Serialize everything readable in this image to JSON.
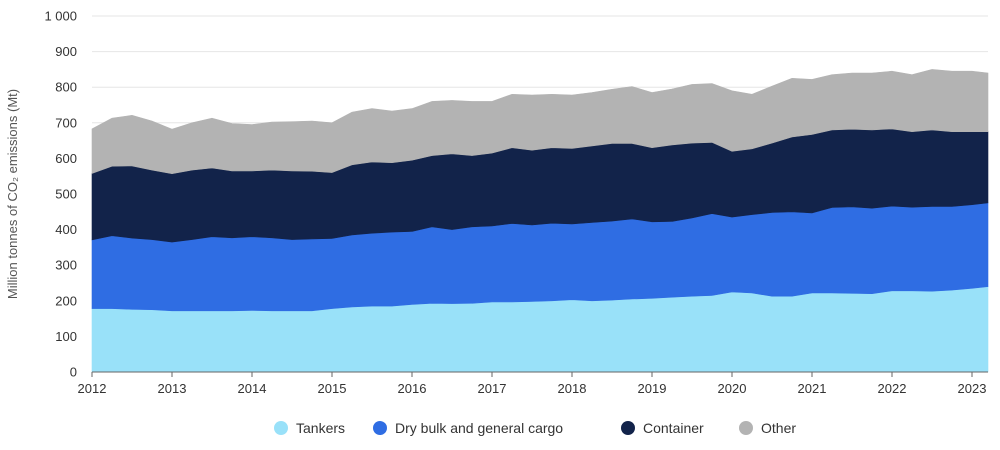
{
  "chart_data": {
    "type": "area",
    "stacked": true,
    "ylabel": "Million tonnes of CO₂ emissions (Mt)",
    "xlabel": "",
    "ylim": [
      0,
      1000
    ],
    "yticks": [
      0,
      100,
      200,
      300,
      400,
      500,
      600,
      700,
      800,
      900,
      1000
    ],
    "ytick_labels": [
      "0",
      "100",
      "200",
      "300",
      "400",
      "500",
      "600",
      "700",
      "800",
      "900",
      "1 000"
    ],
    "xlim": [
      2012,
      2023.2
    ],
    "xticks": [
      "2012",
      "2013",
      "2014",
      "2015",
      "2016",
      "2017",
      "2018",
      "2019",
      "2020",
      "2021",
      "2022",
      "2023"
    ],
    "grid": "horizontal",
    "legend_position": "bottom",
    "x": [
      2012,
      2012.25,
      2012.5,
      2012.75,
      2013,
      2013.25,
      2013.5,
      2013.75,
      2014,
      2014.25,
      2014.5,
      2014.75,
      2015,
      2015.25,
      2015.5,
      2015.75,
      2016,
      2016.25,
      2016.5,
      2016.75,
      2017,
      2017.25,
      2017.5,
      2017.75,
      2018,
      2018.25,
      2018.5,
      2018.75,
      2019,
      2019.25,
      2019.5,
      2019.75,
      2020,
      2020.25,
      2020.5,
      2020.75,
      2021,
      2021.25,
      2021.5,
      2021.75,
      2022,
      2022.25,
      2022.5,
      2022.75,
      2023,
      2023.2
    ],
    "series": [
      {
        "name": "Tankers",
        "color": "#99e1f9",
        "values": [
          178,
          178,
          176,
          175,
          172,
          172,
          172,
          172,
          173,
          172,
          172,
          172,
          178,
          183,
          185,
          185,
          190,
          193,
          192,
          193,
          197,
          197,
          198,
          200,
          203,
          200,
          202,
          205,
          207,
          210,
          213,
          215,
          225,
          222,
          213,
          213,
          222,
          222,
          221,
          220,
          228,
          228,
          227,
          230,
          235,
          240
        ]
      },
      {
        "name": "Dry bulk and general cargo",
        "color": "#2f6de3",
        "values": [
          193,
          205,
          200,
          197,
          193,
          200,
          208,
          205,
          207,
          205,
          200,
          202,
          197,
          202,
          205,
          208,
          205,
          215,
          208,
          215,
          213,
          220,
          215,
          218,
          213,
          220,
          222,
          225,
          215,
          213,
          220,
          230,
          210,
          220,
          235,
          237,
          225,
          240,
          243,
          240,
          238,
          235,
          238,
          235,
          235,
          235
        ]
      },
      {
        "name": "Container",
        "color": "#12234a",
        "values": [
          187,
          195,
          203,
          195,
          192,
          195,
          193,
          188,
          185,
          190,
          193,
          190,
          185,
          197,
          200,
          195,
          200,
          200,
          213,
          200,
          205,
          213,
          210,
          212,
          212,
          215,
          218,
          212,
          208,
          215,
          210,
          200,
          185,
          185,
          195,
          210,
          220,
          218,
          218,
          220,
          217,
          212,
          215,
          210,
          205,
          200
        ]
      },
      {
        "name": "Other",
        "color": "#b3b3b3",
        "values": [
          125,
          135,
          142,
          138,
          125,
          133,
          140,
          133,
          130,
          135,
          138,
          141,
          140,
          148,
          150,
          145,
          145,
          152,
          150,
          152,
          145,
          150,
          155,
          150,
          150,
          150,
          152,
          160,
          155,
          157,
          165,
          165,
          170,
          153,
          160,
          165,
          155,
          155,
          158,
          160,
          162,
          160,
          170,
          170,
          170,
          165
        ]
      }
    ]
  }
}
